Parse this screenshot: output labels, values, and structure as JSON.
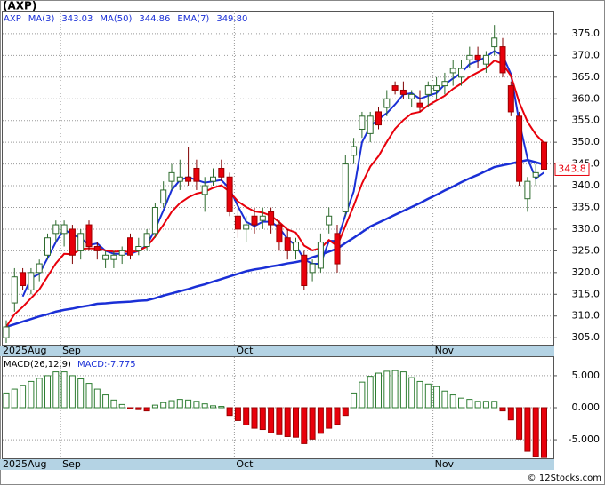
{
  "chart_data": {
    "type": "candlestick",
    "title": "(AXP)",
    "symbol": "AXP",
    "copyright": "© 12Stocks.com",
    "categories": [
      "2025Aug",
      null,
      null,
      null,
      null,
      null,
      null,
      "Sep",
      null,
      null,
      null,
      null,
      null,
      null,
      null,
      null,
      null,
      null,
      null,
      null,
      null,
      null,
      null,
      null,
      null,
      null,
      null,
      null,
      "Oct",
      null,
      null,
      null,
      null,
      null,
      null,
      null,
      null,
      null,
      null,
      null,
      null,
      null,
      null,
      null,
      null,
      null,
      null,
      null,
      null,
      null,
      null,
      null,
      "Nov",
      null,
      null,
      null,
      null,
      null,
      null,
      null,
      null,
      null,
      null,
      null,
      null,
      null
    ],
    "open": [
      305,
      313,
      320,
      316,
      320,
      324,
      329,
      329,
      330,
      325,
      331,
      326,
      323,
      323,
      324,
      328,
      325,
      326,
      329,
      336,
      341,
      341,
      342,
      344,
      338,
      341,
      344,
      342,
      333,
      330,
      333,
      332,
      334,
      331,
      328,
      325,
      324,
      320,
      321,
      331,
      329,
      334,
      347,
      353,
      352,
      357,
      358,
      363,
      362,
      360,
      359,
      361,
      362,
      363,
      366,
      365,
      369,
      370,
      368,
      372,
      372,
      363,
      356,
      337,
      342,
      350
    ],
    "high": [
      309,
      321,
      321,
      321,
      323,
      329,
      332,
      332,
      331,
      330,
      332,
      327,
      325,
      325,
      326,
      329,
      328,
      330,
      336,
      341,
      345,
      346,
      349,
      346,
      342,
      344,
      346,
      343,
      336,
      333,
      335,
      335,
      335,
      332,
      330,
      328,
      325,
      323,
      329,
      335,
      331,
      347,
      351,
      357,
      357,
      358,
      362,
      364,
      364,
      362,
      362,
      364,
      365,
      366,
      369,
      369,
      372,
      372,
      371,
      377,
      374,
      364,
      357,
      342,
      345,
      353
    ],
    "low": [
      303.8,
      311,
      316,
      315,
      318,
      323,
      327,
      326,
      322,
      323,
      325,
      323,
      321,
      321,
      322,
      323,
      324,
      325,
      328,
      335,
      339,
      339,
      340,
      339,
      334,
      340,
      341,
      333,
      328,
      327,
      329,
      330,
      329,
      325,
      323,
      323,
      316,
      318,
      320,
      329,
      320,
      333,
      345,
      351,
      350,
      353,
      356,
      361,
      360,
      358,
      357,
      358,
      360,
      361,
      363,
      363,
      367,
      367,
      366,
      370,
      365,
      356,
      340,
      334,
      340,
      342
    ],
    "close": [
      307.5,
      319,
      317,
      320,
      322,
      328,
      331,
      331,
      324,
      329,
      326,
      325,
      324,
      324,
      325,
      324,
      326,
      329,
      335,
      339,
      343,
      342,
      341,
      341,
      340,
      342,
      342,
      334,
      330,
      331,
      331,
      333,
      331,
      327,
      325,
      327,
      317,
      322,
      327,
      333,
      322,
      345,
      349,
      356,
      356,
      354,
      360,
      362,
      361,
      361,
      358,
      363,
      363,
      364,
      367,
      367,
      370,
      369,
      370,
      374,
      366,
      357,
      341,
      341,
      343,
      343.8
    ],
    "up_color": "#ffffff",
    "down_color": "#e8000b",
    "edge_color": "#2e6b2e",
    "series": [
      {
        "name": "MA(3)",
        "color": "#1a2fd6",
        "width": 2,
        "last_label": "343.03",
        "values": [
          null,
          null,
          314.5,
          318.7,
          319.7,
          323.3,
          327,
          330,
          328.7,
          328,
          326.3,
          326.7,
          325,
          324.3,
          324.3,
          324.3,
          325,
          326.3,
          330,
          334.3,
          339,
          341.3,
          342,
          341.3,
          340.7,
          341,
          341.3,
          339.3,
          335.3,
          331.7,
          330.7,
          331.7,
          331.7,
          330.3,
          327.7,
          326.3,
          323,
          322,
          322,
          327.3,
          327.3,
          333.3,
          338.7,
          350,
          353.7,
          355.3,
          356.7,
          358.7,
          361,
          361.3,
          360,
          360.7,
          361.3,
          363.3,
          364.7,
          366,
          368,
          368.7,
          369.7,
          371,
          370,
          365.7,
          354.7,
          346.3,
          341.7,
          343.03
        ]
      },
      {
        "name": "MA(50)",
        "color": "#1a2fd6",
        "width": 2.5,
        "last_label": "344.86",
        "values": [
          307.5,
          308.1,
          308.7,
          309.3,
          309.9,
          310.4,
          311.0,
          311.4,
          311.7,
          312.1,
          312.4,
          312.8,
          312.9,
          313.1,
          313.2,
          313.3,
          313.5,
          313.6,
          314.1,
          314.7,
          315.2,
          315.7,
          316.2,
          316.8,
          317.3,
          317.9,
          318.5,
          319.1,
          319.7,
          320.3,
          320.7,
          321.0,
          321.4,
          321.7,
          322.1,
          322.4,
          322.8,
          323.5,
          324.1,
          324.8,
          325.5,
          326.8,
          328.0,
          329.3,
          330.6,
          331.5,
          332.4,
          333.3,
          334.2,
          335.1,
          336.0,
          337.0,
          337.9,
          338.9,
          339.8,
          340.8,
          341.7,
          342.5,
          343.4,
          344.3,
          344.7,
          345.1,
          345.5,
          345.9,
          345.4,
          344.86
        ]
      },
      {
        "name": "EMA(7)",
        "color": "#e8000b",
        "width": 2,
        "last_label": "349.80",
        "values": [
          307.5,
          310.4,
          312.1,
          314.1,
          316.1,
          319.1,
          322.1,
          324.3,
          324.2,
          325.4,
          325.6,
          325.5,
          325.1,
          324.8,
          324.9,
          324.7,
          325.0,
          326.0,
          328.3,
          331.0,
          334.0,
          336.0,
          337.3,
          338.2,
          338.6,
          339.5,
          340.1,
          338.6,
          336.4,
          335.1,
          334.1,
          333.8,
          333.1,
          331.6,
          329.9,
          329.2,
          326.2,
          325.1,
          325.6,
          327.5,
          326.1,
          330.8,
          335.4,
          340.5,
          344.4,
          346.8,
          350.1,
          353.1,
          355.1,
          356.6,
          357.0,
          358.5,
          359.6,
          360.7,
          362.3,
          363.5,
          365.1,
          366.1,
          367.1,
          368.8,
          368.1,
          365.3,
          359.2,
          354.7,
          351.8,
          349.8
        ]
      }
    ],
    "ylim": [
      303.4,
      380.3
    ],
    "yticks": [
      {
        "value": 305,
        "label": "305.0"
      },
      {
        "value": 310,
        "label": "310.0"
      },
      {
        "value": 315,
        "label": "315.0"
      },
      {
        "value": 320,
        "label": "320.0"
      },
      {
        "value": 325,
        "label": "325.0"
      },
      {
        "value": 330,
        "label": "330.0"
      },
      {
        "value": 335,
        "label": "335.0"
      },
      {
        "value": 340,
        "label": "340.0"
      },
      {
        "value": 345,
        "label": "345.0"
      },
      {
        "value": 350,
        "label": "350.0"
      },
      {
        "value": 355,
        "label": "355.0"
      },
      {
        "value": 360,
        "label": "360.0"
      },
      {
        "value": 365,
        "label": "365.0"
      },
      {
        "value": 370,
        "label": "370.0"
      },
      {
        "value": 375,
        "label": "375.0"
      }
    ],
    "grid": true,
    "macd": {
      "title": "MACD(26,12,9)",
      "last_label": "MACD:-7.775",
      "pos_color": "#2e7d32",
      "neg_color": "#e8000b",
      "values": [
        2.3,
        2.9,
        3.5,
        4.1,
        4.6,
        5.0,
        5.6,
        5.6,
        5.0,
        4.5,
        3.8,
        2.9,
        2.0,
        1.2,
        0.5,
        -0.2,
        -0.3,
        -0.5,
        0.4,
        0.8,
        1.1,
        1.3,
        1.2,
        1.0,
        0.6,
        0.3,
        0.2,
        -1.2,
        -2.0,
        -2.7,
        -3.2,
        -3.4,
        -3.9,
        -4.2,
        -4.5,
        -4.6,
        -5.6,
        -4.9,
        -4.0,
        -3.2,
        -2.6,
        -1.2,
        2.3,
        4.0,
        4.9,
        5.4,
        5.7,
        5.8,
        5.6,
        4.7,
        4.1,
        3.7,
        3.3,
        2.6,
        2.0,
        1.5,
        1.3,
        1.0,
        1.0,
        1.0,
        -0.5,
        -1.9,
        -4.9,
        -6.8,
        -7.6,
        -7.775
      ],
      "ylim": [
        -7.9,
        7.9
      ],
      "yticks": [
        {
          "value": 5,
          "label": "5.000"
        },
        {
          "value": 0,
          "label": "0.000"
        },
        {
          "value": -5,
          "label": "-5.000"
        }
      ]
    }
  }
}
